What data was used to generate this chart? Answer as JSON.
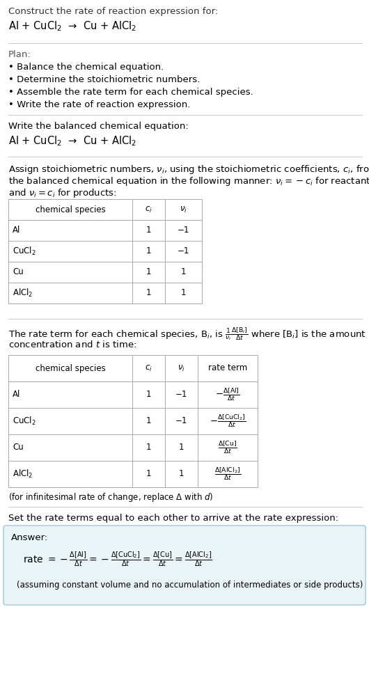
{
  "bg_color": "#ffffff",
  "text_color": "#000000",
  "title_line1": "Construct the rate of reaction expression for:",
  "title_line2": "Al + CuCl$_2$  →  Cu + AlCl$_2$",
  "plan_header": "Plan:",
  "plan_items": [
    "• Balance the chemical equation.",
    "• Determine the stoichiometric numbers.",
    "• Assemble the rate term for each chemical species.",
    "• Write the rate of reaction expression."
  ],
  "balanced_header": "Write the balanced chemical equation:",
  "balanced_eq": "Al + CuCl$_2$  →  Cu + AlCl$_2$",
  "stoich_header1": "Assign stoichiometric numbers, $\\nu_i$, using the stoichiometric coefficients, $c_i$, from",
  "stoich_header2": "the balanced chemical equation in the following manner: $\\nu_i = -c_i$ for reactants",
  "stoich_header3": "and $\\nu_i = c_i$ for products:",
  "table1_headers": [
    "chemical species",
    "$c_i$",
    "$\\nu_i$"
  ],
  "table1_data": [
    [
      "Al",
      "1",
      "−1"
    ],
    [
      "CuCl$_2$",
      "1",
      "−1"
    ],
    [
      "Cu",
      "1",
      "1"
    ],
    [
      "AlCl$_2$",
      "1",
      "1"
    ]
  ],
  "rate_term_desc1": "The rate term for each chemical species, B$_i$, is $\\frac{1}{\\nu_i}\\frac{\\Delta[\\mathrm{B}_i]}{\\Delta t}$ where [B$_i$] is the amount",
  "rate_term_desc2": "concentration and $t$ is time:",
  "table2_headers": [
    "chemical species",
    "$c_i$",
    "$\\nu_i$",
    "rate term"
  ],
  "table2_data": [
    [
      "Al",
      "1",
      "−1",
      "$-\\frac{\\Delta[\\mathrm{Al}]}{\\Delta t}$"
    ],
    [
      "CuCl$_2$",
      "1",
      "−1",
      "$-\\frac{\\Delta[\\mathrm{CuCl}_2]}{\\Delta t}$"
    ],
    [
      "Cu",
      "1",
      "1",
      "$\\frac{\\Delta[\\mathrm{Cu}]}{\\Delta t}$"
    ],
    [
      "AlCl$_2$",
      "1",
      "1",
      "$\\frac{\\Delta[\\mathrm{AlCl}_2]}{\\Delta t}$"
    ]
  ],
  "infinitesimal_note": "(for infinitesimal rate of change, replace Δ with $d$)",
  "set_equal_header": "Set the rate terms equal to each other to arrive at the rate expression:",
  "answer_label": "Answer:",
  "answer_box_color": "#e8f4f8",
  "answer_box_border": "#a0c8d8",
  "rate_expression": "rate $= -\\frac{\\Delta[\\mathrm{Al}]}{\\Delta t} = -\\frac{\\Delta[\\mathrm{CuCl}_2]}{\\Delta t} = \\frac{\\Delta[\\mathrm{Cu}]}{\\Delta t} = \\frac{\\Delta[\\mathrm{AlCl}_2]}{\\Delta t}$",
  "assumption_note": "(assuming constant volume and no accumulation of intermediates or side products)"
}
